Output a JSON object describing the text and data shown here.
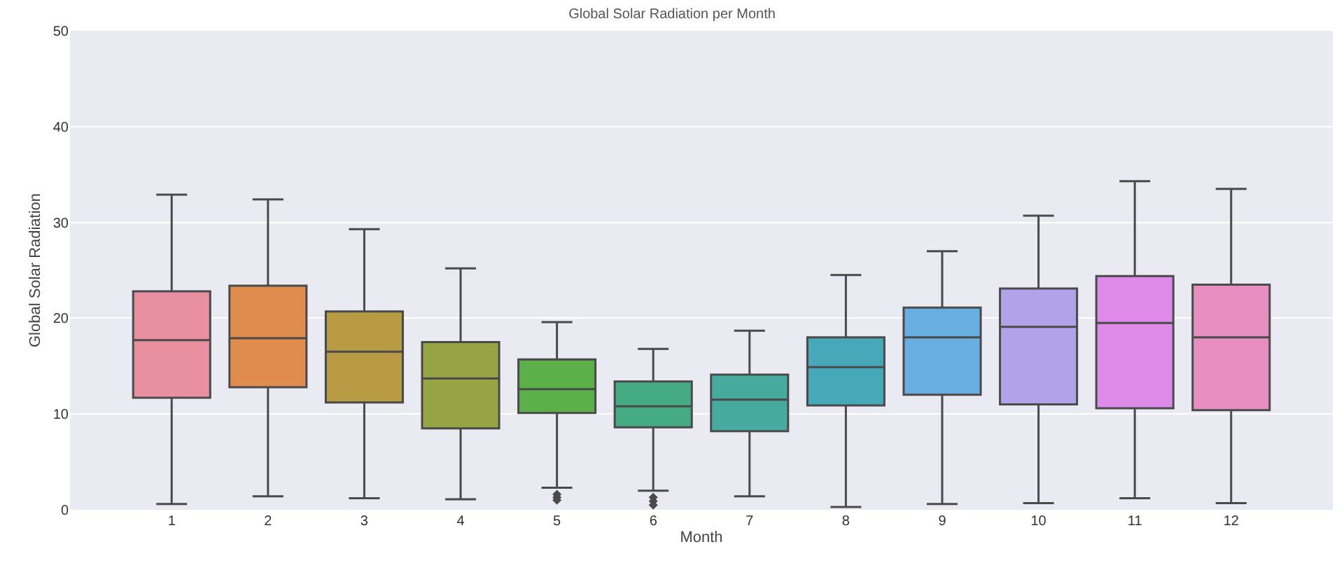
{
  "chart_data": {
    "type": "box",
    "title": "Global Solar Radiation per Month",
    "xlabel": "Month",
    "ylabel": "Global Solar Radiation",
    "categories": [
      "1",
      "2",
      "3",
      "4",
      "5",
      "6",
      "7",
      "8",
      "9",
      "10",
      "11",
      "12"
    ],
    "colors": [
      "#e8909f",
      "#e08c4e",
      "#b89a45",
      "#97a444",
      "#5bb04a",
      "#45ab84",
      "#47aa9e",
      "#47a8ba",
      "#69aee0",
      "#b1a2ea",
      "#dd8ae8",
      "#e68ebf"
    ],
    "boxes": [
      {
        "low": 0.6,
        "q1": 11.7,
        "median": 17.7,
        "q3": 22.8,
        "high": 32.9
      },
      {
        "low": 1.4,
        "q1": 12.8,
        "median": 17.9,
        "q3": 23.4,
        "high": 32.4
      },
      {
        "low": 1.2,
        "q1": 11.2,
        "median": 16.5,
        "q3": 20.7,
        "high": 29.3
      },
      {
        "low": 1.1,
        "q1": 8.5,
        "median": 13.7,
        "q3": 17.5,
        "high": 25.2
      },
      {
        "low": 2.3,
        "q1": 10.1,
        "median": 12.6,
        "q3": 15.7,
        "high": 19.6,
        "outliers": [
          1.6,
          1.3,
          1.0
        ]
      },
      {
        "low": 2.0,
        "q1": 8.6,
        "median": 10.8,
        "q3": 13.4,
        "high": 16.8,
        "outliers": [
          1.3,
          0.9,
          0.5
        ]
      },
      {
        "low": 1.4,
        "q1": 8.2,
        "median": 11.5,
        "q3": 14.1,
        "high": 18.7
      },
      {
        "low": 0.3,
        "q1": 10.9,
        "median": 14.9,
        "q3": 18.0,
        "high": 24.5
      },
      {
        "low": 0.6,
        "q1": 12.0,
        "median": 18.0,
        "q3": 21.1,
        "high": 27.0
      },
      {
        "low": 0.7,
        "q1": 11.0,
        "median": 19.1,
        "q3": 23.1,
        "high": 30.7
      },
      {
        "low": 1.2,
        "q1": 10.6,
        "median": 19.5,
        "q3": 24.4,
        "high": 34.3
      },
      {
        "low": 0.7,
        "q1": 10.4,
        "median": 18.0,
        "q3": 23.5,
        "high": 33.5
      }
    ],
    "ylim": [
      0,
      50
    ],
    "yticks": [
      0,
      10,
      20,
      30,
      40,
      50
    ],
    "grid": "y"
  }
}
